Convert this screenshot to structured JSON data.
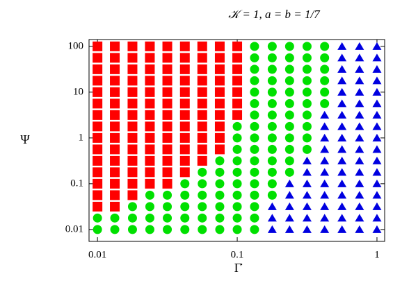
{
  "chart_data": {
    "type": "scatter",
    "title": "𝒦 = 1, a = b = 1/7",
    "xlabel": "Γ̇",
    "ylabel": "Ψ",
    "xscale": "log",
    "yscale": "log",
    "xlim": [
      0.0087,
      1.135
    ],
    "ylim": [
      0.0055,
      141
    ],
    "xticks": [
      0.01,
      0.1,
      1
    ],
    "yticks": [
      0.01,
      0.1,
      1,
      10,
      100
    ],
    "series": [
      {
        "marker": "square",
        "color": "#ff0000",
        "columns": [
          {
            "x": 0.01,
            "y": [
              100,
              56.2,
              31.6,
              17.8,
              10,
              5.62,
              3.16,
              1.78,
              1,
              0.562,
              0.316,
              0.178,
              0.1,
              0.0562,
              0.0316
            ]
          },
          {
            "x": 0.0133,
            "y": [
              100,
              56.2,
              31.6,
              17.8,
              10,
              5.62,
              3.16,
              1.78,
              1,
              0.562,
              0.316,
              0.178,
              0.1,
              0.0562,
              0.0316
            ]
          },
          {
            "x": 0.0178,
            "y": [
              100,
              56.2,
              31.6,
              17.8,
              10,
              5.62,
              3.16,
              1.78,
              1,
              0.562,
              0.316,
              0.178,
              0.1,
              0.0562
            ]
          },
          {
            "x": 0.0237,
            "y": [
              100,
              56.2,
              31.6,
              17.8,
              10,
              5.62,
              3.16,
              1.78,
              1,
              0.562,
              0.316,
              0.178,
              0.1
            ]
          },
          {
            "x": 0.0316,
            "y": [
              100,
              56.2,
              31.6,
              17.8,
              10,
              5.62,
              3.16,
              1.78,
              1,
              0.562,
              0.316,
              0.178,
              0.1
            ]
          },
          {
            "x": 0.0422,
            "y": [
              100,
              56.2,
              31.6,
              17.8,
              10,
              5.62,
              3.16,
              1.78,
              1,
              0.562,
              0.316,
              0.178
            ]
          },
          {
            "x": 0.0562,
            "y": [
              100,
              56.2,
              31.6,
              17.8,
              10,
              5.62,
              3.16,
              1.78,
              1,
              0.562,
              0.316
            ]
          },
          {
            "x": 0.075,
            "y": [
              100,
              56.2,
              31.6,
              17.8,
              10,
              5.62,
              3.16,
              1.78,
              1,
              0.562
            ]
          },
          {
            "x": 0.1,
            "y": [
              100,
              56.2,
              31.6,
              17.8,
              10,
              5.62,
              3.16
            ]
          }
        ]
      },
      {
        "marker": "circle",
        "color": "#00e000",
        "columns": [
          {
            "x": 0.01,
            "y": [
              0.0178,
              0.01
            ]
          },
          {
            "x": 0.0133,
            "y": [
              0.0178,
              0.01
            ]
          },
          {
            "x": 0.0178,
            "y": [
              0.0316,
              0.0178,
              0.01
            ]
          },
          {
            "x": 0.0237,
            "y": [
              0.0562,
              0.0316,
              0.0178,
              0.01
            ]
          },
          {
            "x": 0.0316,
            "y": [
              0.0562,
              0.0316,
              0.0178,
              0.01
            ]
          },
          {
            "x": 0.0422,
            "y": [
              0.1,
              0.0562,
              0.0316,
              0.0178,
              0.01
            ]
          },
          {
            "x": 0.0562,
            "y": [
              0.178,
              0.1,
              0.0562,
              0.0316,
              0.0178,
              0.01
            ]
          },
          {
            "x": 0.075,
            "y": [
              0.316,
              0.178,
              0.1,
              0.0562,
              0.0316,
              0.0178,
              0.01
            ]
          },
          {
            "x": 0.1,
            "y": [
              1.78,
              1,
              0.562,
              0.316,
              0.178,
              0.1,
              0.0562,
              0.0316,
              0.0178,
              0.01
            ]
          },
          {
            "x": 0.133,
            "y": [
              100,
              56.2,
              31.6,
              17.8,
              10,
              5.62,
              3.16,
              1.78,
              1,
              0.562,
              0.316,
              0.178,
              0.1,
              0.0562,
              0.0316,
              0.0178,
              0.01
            ]
          },
          {
            "x": 0.178,
            "y": [
              100,
              56.2,
              31.6,
              17.8,
              10,
              5.62,
              3.16,
              1.78,
              1,
              0.562,
              0.316,
              0.178,
              0.1,
              0.0562
            ]
          },
          {
            "x": 0.237,
            "y": [
              100,
              56.2,
              31.6,
              17.8,
              10,
              5.62,
              3.16,
              1.78,
              1,
              0.562,
              0.316,
              0.178
            ]
          },
          {
            "x": 0.316,
            "y": [
              100,
              56.2,
              31.6,
              17.8,
              10,
              5.62,
              3.16,
              1.78,
              1,
              0.562
            ]
          },
          {
            "x": 0.422,
            "y": [
              100,
              56.2,
              31.6,
              17.8,
              10,
              5.62
            ]
          }
        ]
      },
      {
        "marker": "triangle",
        "color": "#0000e0",
        "columns": [
          {
            "x": 0.178,
            "y": [
              0.0316,
              0.0178,
              0.01
            ]
          },
          {
            "x": 0.237,
            "y": [
              0.1,
              0.0562,
              0.0316,
              0.0178,
              0.01
            ]
          },
          {
            "x": 0.316,
            "y": [
              0.316,
              0.178,
              0.1,
              0.0562,
              0.0316,
              0.0178,
              0.01
            ]
          },
          {
            "x": 0.422,
            "y": [
              3.16,
              1.78,
              1,
              0.562,
              0.316,
              0.178,
              0.1,
              0.0562,
              0.0316,
              0.0178,
              0.01
            ]
          },
          {
            "x": 0.562,
            "y": [
              100,
              56.2,
              31.6,
              17.8,
              10,
              5.62,
              3.16,
              1.78,
              1,
              0.562,
              0.316,
              0.178,
              0.1,
              0.0562,
              0.0316,
              0.0178,
              0.01
            ]
          },
          {
            "x": 0.75,
            "y": [
              100,
              56.2,
              31.6,
              17.8,
              10,
              5.62,
              3.16,
              1.78,
              1,
              0.562,
              0.316,
              0.178,
              0.1,
              0.0562,
              0.0316,
              0.0178,
              0.01
            ]
          },
          {
            "x": 1,
            "y": [
              100,
              56.2,
              31.6,
              17.8,
              10,
              5.62,
              3.16,
              1.78,
              1,
              0.562,
              0.316,
              0.178,
              0.1,
              0.0562,
              0.0316,
              0.0178,
              0.01
            ]
          }
        ]
      }
    ]
  }
}
